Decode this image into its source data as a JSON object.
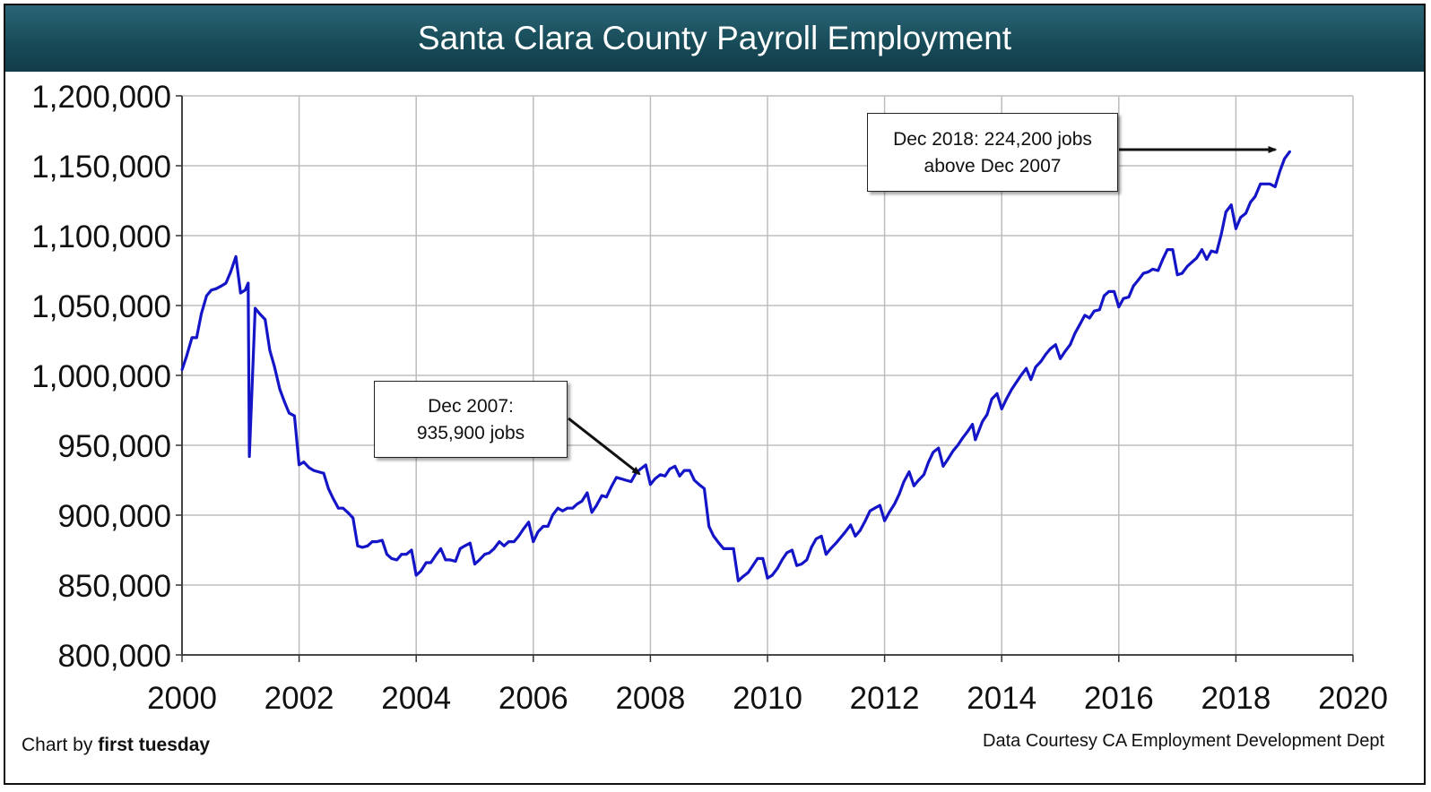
{
  "chart_data": {
    "type": "line",
    "title": "Santa Clara County Payroll Employment",
    "xlabel": "",
    "ylabel": "",
    "xlim": [
      2000,
      2020
    ],
    "ylim": [
      800000,
      1200000
    ],
    "x_ticks": [
      "2000",
      "2002",
      "2004",
      "2006",
      "2008",
      "2010",
      "2012",
      "2014",
      "2016",
      "2018",
      "2020"
    ],
    "y_ticks": [
      "800,000",
      "850,000",
      "900,000",
      "950,000",
      "1,000,000",
      "1,050,000",
      "1,100,000",
      "1,150,000",
      "1,200,000"
    ],
    "grid": true,
    "series_color": "#1515c8",
    "series": [
      {
        "points": [
          [
            2000.0,
            1004000
          ],
          [
            2000.08,
            1014000
          ],
          [
            2000.17,
            1027000
          ],
          [
            2000.25,
            1027000
          ],
          [
            2000.33,
            1044000
          ],
          [
            2000.42,
            1057000
          ],
          [
            2000.5,
            1061000
          ],
          [
            2000.58,
            1062000
          ],
          [
            2000.67,
            1064000
          ],
          [
            2000.75,
            1066000
          ],
          [
            2000.83,
            1074000
          ],
          [
            2000.92,
            1085000
          ],
          [
            2001.0,
            1059000
          ],
          [
            2001.08,
            1061000
          ],
          [
            2001.13,
            1066000
          ],
          [
            2001.15,
            942000
          ],
          [
            2001.25,
            1048000
          ],
          [
            2001.33,
            1044000
          ],
          [
            2001.42,
            1040000
          ],
          [
            2001.5,
            1018000
          ],
          [
            2001.58,
            1006000
          ],
          [
            2001.67,
            990000
          ],
          [
            2001.75,
            981000
          ],
          [
            2001.83,
            973000
          ],
          [
            2001.92,
            971000
          ],
          [
            2002.0,
            936000
          ],
          [
            2002.08,
            938000
          ],
          [
            2002.17,
            934000
          ],
          [
            2002.25,
            932000
          ],
          [
            2002.33,
            931000
          ],
          [
            2002.42,
            930000
          ],
          [
            2002.5,
            919000
          ],
          [
            2002.58,
            912000
          ],
          [
            2002.67,
            905000
          ],
          [
            2002.75,
            905000
          ],
          [
            2002.83,
            902000
          ],
          [
            2002.92,
            898000
          ],
          [
            2003.0,
            878000
          ],
          [
            2003.08,
            877000
          ],
          [
            2003.17,
            878000
          ],
          [
            2003.25,
            881000
          ],
          [
            2003.33,
            881000
          ],
          [
            2003.42,
            882000
          ],
          [
            2003.5,
            872000
          ],
          [
            2003.58,
            869000
          ],
          [
            2003.67,
            868000
          ],
          [
            2003.75,
            872000
          ],
          [
            2003.83,
            872000
          ],
          [
            2003.92,
            875000
          ],
          [
            2004.0,
            857000
          ],
          [
            2004.08,
            860000
          ],
          [
            2004.17,
            866000
          ],
          [
            2004.25,
            866000
          ],
          [
            2004.33,
            871000
          ],
          [
            2004.42,
            876000
          ],
          [
            2004.5,
            868000
          ],
          [
            2004.58,
            868000
          ],
          [
            2004.67,
            867000
          ],
          [
            2004.75,
            876000
          ],
          [
            2004.83,
            878000
          ],
          [
            2004.92,
            880000
          ],
          [
            2005.0,
            865000
          ],
          [
            2005.08,
            868000
          ],
          [
            2005.17,
            872000
          ],
          [
            2005.25,
            873000
          ],
          [
            2005.33,
            876000
          ],
          [
            2005.42,
            881000
          ],
          [
            2005.5,
            878000
          ],
          [
            2005.58,
            881000
          ],
          [
            2005.67,
            881000
          ],
          [
            2005.75,
            885000
          ],
          [
            2005.83,
            890000
          ],
          [
            2005.92,
            895000
          ],
          [
            2006.0,
            881000
          ],
          [
            2006.08,
            888000
          ],
          [
            2006.17,
            892000
          ],
          [
            2006.25,
            892000
          ],
          [
            2006.33,
            900000
          ],
          [
            2006.42,
            905000
          ],
          [
            2006.5,
            903000
          ],
          [
            2006.58,
            905000
          ],
          [
            2006.67,
            905000
          ],
          [
            2006.75,
            908000
          ],
          [
            2006.83,
            910000
          ],
          [
            2006.92,
            916000
          ],
          [
            2007.0,
            902000
          ],
          [
            2007.08,
            907000
          ],
          [
            2007.17,
            914000
          ],
          [
            2007.25,
            913000
          ],
          [
            2007.33,
            920000
          ],
          [
            2007.42,
            927000
          ],
          [
            2007.5,
            926000
          ],
          [
            2007.58,
            925000
          ],
          [
            2007.67,
            924000
          ],
          [
            2007.75,
            930000
          ],
          [
            2007.83,
            933000
          ],
          [
            2007.92,
            935900
          ],
          [
            2008.0,
            922000
          ],
          [
            2008.08,
            926000
          ],
          [
            2008.17,
            929000
          ],
          [
            2008.25,
            928000
          ],
          [
            2008.33,
            933000
          ],
          [
            2008.42,
            935000
          ],
          [
            2008.5,
            928000
          ],
          [
            2008.58,
            932000
          ],
          [
            2008.67,
            932000
          ],
          [
            2008.75,
            925000
          ],
          [
            2008.83,
            922000
          ],
          [
            2008.92,
            919000
          ],
          [
            2009.0,
            892000
          ],
          [
            2009.08,
            885000
          ],
          [
            2009.17,
            880000
          ],
          [
            2009.25,
            876000
          ],
          [
            2009.33,
            876000
          ],
          [
            2009.42,
            876000
          ],
          [
            2009.5,
            853000
          ],
          [
            2009.58,
            856000
          ],
          [
            2009.67,
            859000
          ],
          [
            2009.75,
            864000
          ],
          [
            2009.83,
            869000
          ],
          [
            2009.92,
            869000
          ],
          [
            2010.0,
            855000
          ],
          [
            2010.08,
            857000
          ],
          [
            2010.17,
            862000
          ],
          [
            2010.25,
            868000
          ],
          [
            2010.33,
            873000
          ],
          [
            2010.42,
            875000
          ],
          [
            2010.5,
            864000
          ],
          [
            2010.58,
            865000
          ],
          [
            2010.67,
            868000
          ],
          [
            2010.75,
            877000
          ],
          [
            2010.83,
            883000
          ],
          [
            2010.92,
            885000
          ],
          [
            2011.0,
            872000
          ],
          [
            2011.08,
            876000
          ],
          [
            2011.17,
            880000
          ],
          [
            2011.25,
            884000
          ],
          [
            2011.33,
            888000
          ],
          [
            2011.42,
            893000
          ],
          [
            2011.5,
            885000
          ],
          [
            2011.58,
            889000
          ],
          [
            2011.67,
            896000
          ],
          [
            2011.75,
            903000
          ],
          [
            2011.83,
            905000
          ],
          [
            2011.92,
            907000
          ],
          [
            2012.0,
            896000
          ],
          [
            2012.08,
            902000
          ],
          [
            2012.17,
            908000
          ],
          [
            2012.25,
            915000
          ],
          [
            2012.33,
            924000
          ],
          [
            2012.42,
            931000
          ],
          [
            2012.5,
            921000
          ],
          [
            2012.58,
            925000
          ],
          [
            2012.67,
            929000
          ],
          [
            2012.75,
            938000
          ],
          [
            2012.83,
            945000
          ],
          [
            2012.92,
            948000
          ],
          [
            2013.0,
            935000
          ],
          [
            2013.08,
            940000
          ],
          [
            2013.17,
            946000
          ],
          [
            2013.25,
            950000
          ],
          [
            2013.33,
            955000
          ],
          [
            2013.42,
            960000
          ],
          [
            2013.5,
            965000
          ],
          [
            2013.55,
            954000
          ],
          [
            2013.67,
            967000
          ],
          [
            2013.75,
            972000
          ],
          [
            2013.83,
            983000
          ],
          [
            2013.92,
            987000
          ],
          [
            2014.0,
            976000
          ],
          [
            2014.08,
            983000
          ],
          [
            2014.17,
            990000
          ],
          [
            2014.25,
            995000
          ],
          [
            2014.33,
            1000000
          ],
          [
            2014.42,
            1005000
          ],
          [
            2014.5,
            997000
          ],
          [
            2014.58,
            1006000
          ],
          [
            2014.67,
            1010000
          ],
          [
            2014.75,
            1015000
          ],
          [
            2014.83,
            1019000
          ],
          [
            2014.92,
            1022000
          ],
          [
            2015.0,
            1012000
          ],
          [
            2015.08,
            1017000
          ],
          [
            2015.17,
            1022000
          ],
          [
            2015.25,
            1030000
          ],
          [
            2015.33,
            1036000
          ],
          [
            2015.42,
            1043000
          ],
          [
            2015.5,
            1041000
          ],
          [
            2015.58,
            1046000
          ],
          [
            2015.67,
            1047000
          ],
          [
            2015.75,
            1057000
          ],
          [
            2015.83,
            1060000
          ],
          [
            2015.92,
            1060000
          ],
          [
            2016.0,
            1049000
          ],
          [
            2016.08,
            1055000
          ],
          [
            2016.17,
            1056000
          ],
          [
            2016.25,
            1064000
          ],
          [
            2016.33,
            1068000
          ],
          [
            2016.42,
            1073000
          ],
          [
            2016.5,
            1074000
          ],
          [
            2016.58,
            1076000
          ],
          [
            2016.67,
            1075000
          ],
          [
            2016.75,
            1083000
          ],
          [
            2016.83,
            1090000
          ],
          [
            2016.92,
            1090000
          ],
          [
            2017.0,
            1072000
          ],
          [
            2017.08,
            1073000
          ],
          [
            2017.17,
            1078000
          ],
          [
            2017.25,
            1081000
          ],
          [
            2017.33,
            1084000
          ],
          [
            2017.42,
            1090000
          ],
          [
            2017.5,
            1083000
          ],
          [
            2017.58,
            1089000
          ],
          [
            2017.67,
            1088000
          ],
          [
            2017.75,
            1101000
          ],
          [
            2017.83,
            1117000
          ],
          [
            2017.92,
            1122000
          ],
          [
            2018.0,
            1105000
          ],
          [
            2018.08,
            1113000
          ],
          [
            2018.17,
            1116000
          ],
          [
            2018.25,
            1124000
          ],
          [
            2018.33,
            1128000
          ],
          [
            2018.42,
            1137000
          ],
          [
            2018.5,
            1137000
          ],
          [
            2018.58,
            1137000
          ],
          [
            2018.67,
            1135000
          ],
          [
            2018.75,
            1146000
          ],
          [
            2018.83,
            1155000
          ],
          [
            2018.92,
            1160100
          ]
        ]
      }
    ],
    "annotations": [
      {
        "lines": [
          "Dec 2007:",
          "935,900 jobs"
        ],
        "target": [
          2007.92,
          935900
        ]
      },
      {
        "lines": [
          "Dec 2018: 224,200 jobs",
          "above Dec 2007"
        ],
        "target": [
          2018.92,
          1160100
        ]
      }
    ]
  },
  "footer": {
    "credit_prefix": "Chart by ",
    "credit_name": "first tuesday",
    "source": "Data Courtesy CA Employment Development Dept"
  }
}
